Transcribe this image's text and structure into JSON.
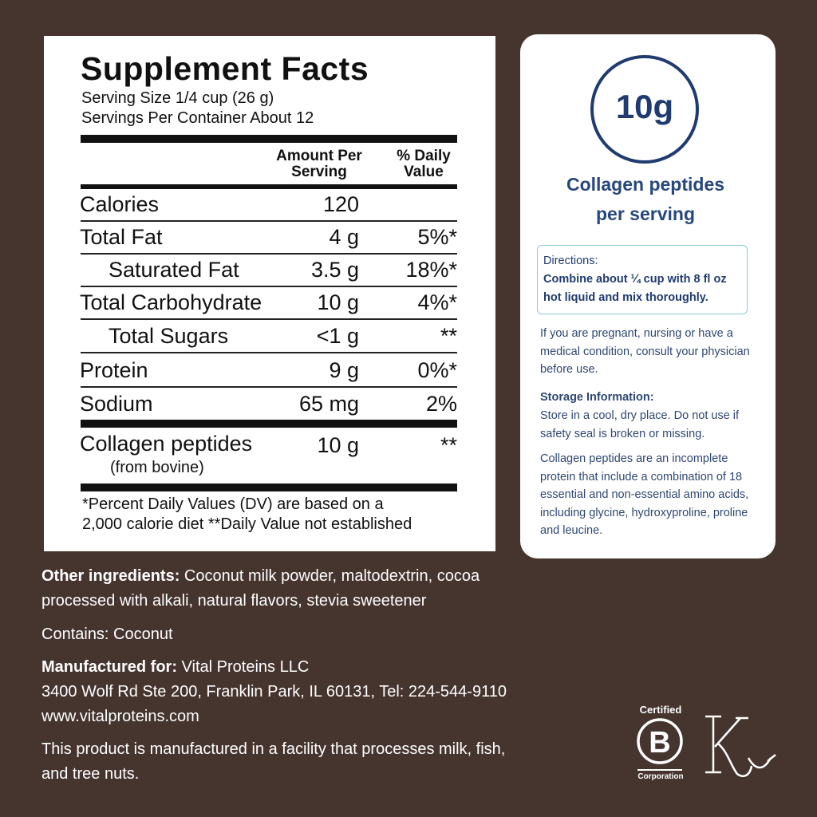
{
  "supplement_facts": {
    "title": "Supplement Facts",
    "serving_size": "Serving Size 1/4 cup (26 g)",
    "servings_per_container": "Servings Per Container About 12",
    "header_amount": [
      "Amount Per",
      "Serving"
    ],
    "header_dv": [
      "% Daily",
      "Value"
    ],
    "rows": [
      {
        "name": "Calories",
        "amount": "120",
        "dv": ""
      },
      {
        "name": "Total Fat",
        "amount": "4 g",
        "dv": "5%*"
      },
      {
        "name": "Saturated Fat",
        "amount": "3.5 g",
        "dv": "18%*"
      },
      {
        "name": "Total Carbohydrate",
        "amount": "10 g",
        "dv": "4%*"
      },
      {
        "name": "Total Sugars",
        "amount": "<1 g",
        "dv": "**"
      },
      {
        "name": "Protein",
        "amount": "9 g",
        "dv": "0%*"
      },
      {
        "name": "Sodium",
        "amount": "65 mg",
        "dv": "2%"
      }
    ],
    "collagen": {
      "name": "Collagen peptides",
      "source": "(from bovine)",
      "amount": "10 g",
      "dv": "**"
    },
    "footnote": [
      "*Percent Daily Values (DV) are based on a",
      "2,000 calorie diet **Daily Value not established"
    ]
  },
  "card": {
    "badge": "10g",
    "headline": [
      "Collagen peptides",
      "per serving"
    ],
    "directions_title": "Directions:",
    "directions_text": [
      "Combine about ¼ cup with 8 fl oz",
      "hot liquid and mix thoroughly."
    ],
    "warning": "If you are pregnant, nursing or have a medical condition, consult your physician before use.",
    "storage_title": "Storage Information:",
    "storage_text": "Store in a cool, dry place. Do not use if safety seal is broken or missing.",
    "note": "Collagen peptides are an incomplete protein that include a combination of 18 essential and non-essential amino acids, including glycine, hydroxyproline, proline and leucine."
  },
  "bottom": {
    "other_label": "Other ingredients:",
    "other_text": " Coconut milk powder, maltodextrin, cocoa processed with alkali, natural flavors, stevia sweetener",
    "contains": "Contains: Coconut",
    "manufactured_label": "Manufactured for:",
    "manufactured_name": " Vital Proteins LLC",
    "address": "3400 Wolf Rd Ste 200, Franklin Park, IL 60131, Tel: 224-544-9110",
    "website": "www.vitalproteins.com",
    "allergen": "This product is manufactured in a facility that processes milk, fish, and tree nuts."
  },
  "logos": {
    "bcorp_top": "Certified",
    "bcorp_letter": "B",
    "bcorp_bottom": "Corporation"
  }
}
